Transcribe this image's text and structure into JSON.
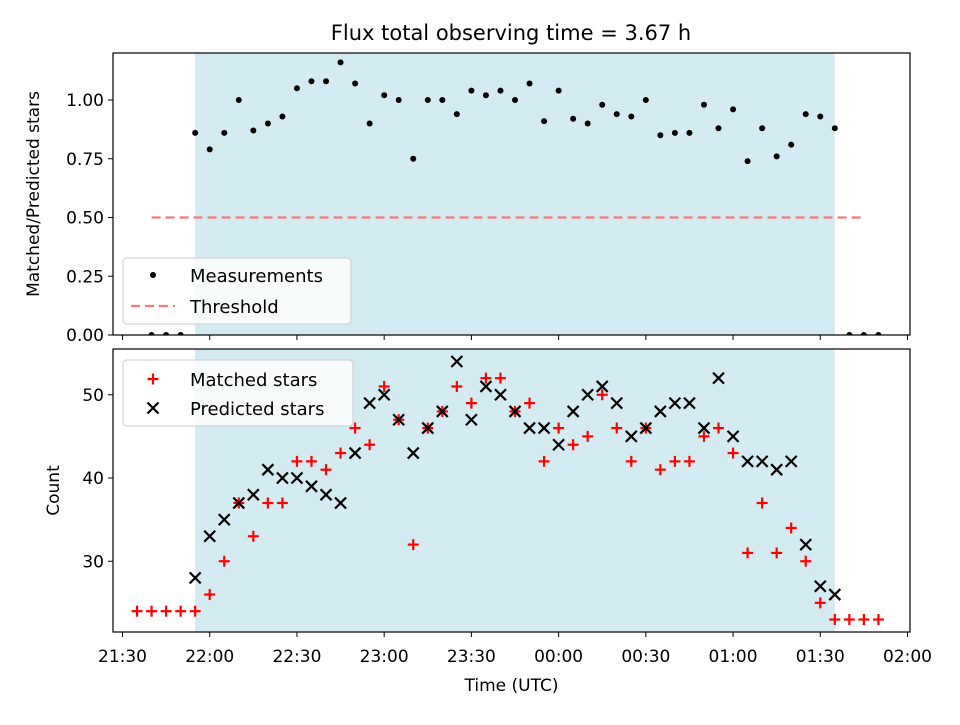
{
  "chart_data": [
    {
      "type": "scatter",
      "title": "Flux total observing time = 3.67 h",
      "ylabel": "Matched/Predicted stars",
      "ylim": [
        0,
        1.2
      ],
      "y_ticks": [
        "0.00",
        "0.25",
        "0.50",
        "0.75",
        "1.00"
      ],
      "observing_window": {
        "start": "21:55",
        "end": "01:35",
        "color": "#d4ebf1"
      },
      "threshold": {
        "value": 0.5,
        "from": "21:40",
        "to": "01:45",
        "color": "#f47a7a"
      },
      "legend": {
        "placement": "lower left",
        "entries": [
          "Measurements",
          "Threshold"
        ]
      },
      "series": [
        {
          "name": "Measurements",
          "color": "#000000",
          "marker": "dot",
          "points": [
            [
              "21:40",
              0.0
            ],
            [
              "21:45",
              0.0
            ],
            [
              "21:50",
              0.0
            ],
            [
              "21:55",
              0.86
            ],
            [
              "22:00",
              0.79
            ],
            [
              "22:05",
              0.86
            ],
            [
              "22:10",
              1.0
            ],
            [
              "22:15",
              0.87
            ],
            [
              "22:20",
              0.9
            ],
            [
              "22:25",
              0.93
            ],
            [
              "22:30",
              1.05
            ],
            [
              "22:35",
              1.08
            ],
            [
              "22:40",
              1.08
            ],
            [
              "22:45",
              1.16
            ],
            [
              "22:50",
              1.07
            ],
            [
              "22:55",
              0.9
            ],
            [
              "23:00",
              1.02
            ],
            [
              "23:05",
              1.0
            ],
            [
              "23:10",
              0.75
            ],
            [
              "23:15",
              1.0
            ],
            [
              "23:20",
              1.0
            ],
            [
              "23:25",
              0.94
            ],
            [
              "23:30",
              1.04
            ],
            [
              "23:35",
              1.02
            ],
            [
              "23:40",
              1.04
            ],
            [
              "23:45",
              1.0
            ],
            [
              "23:50",
              1.07
            ],
            [
              "23:55",
              0.91
            ],
            [
              "00:00",
              1.04
            ],
            [
              "00:05",
              0.92
            ],
            [
              "00:10",
              0.9
            ],
            [
              "00:15",
              0.98
            ],
            [
              "00:20",
              0.94
            ],
            [
              "00:25",
              0.93
            ],
            [
              "00:30",
              1.0
            ],
            [
              "00:35",
              0.85
            ],
            [
              "00:40",
              0.86
            ],
            [
              "00:45",
              0.86
            ],
            [
              "00:50",
              0.98
            ],
            [
              "00:55",
              0.88
            ],
            [
              "01:00",
              0.96
            ],
            [
              "01:05",
              0.74
            ],
            [
              "01:10",
              0.88
            ],
            [
              "01:15",
              0.76
            ],
            [
              "01:20",
              0.81
            ],
            [
              "01:25",
              0.94
            ],
            [
              "01:30",
              0.93
            ],
            [
              "01:35",
              0.88
            ],
            [
              "01:40",
              0.0
            ],
            [
              "01:45",
              0.0
            ],
            [
              "01:50",
              0.0
            ]
          ]
        }
      ]
    },
    {
      "type": "scatter",
      "ylabel": "Count",
      "xlabel": "Time (UTC)",
      "ylim": [
        21.5,
        55.5
      ],
      "y_ticks": [
        30,
        40,
        50
      ],
      "x_ticks": [
        "21:30",
        "22:00",
        "22:30",
        "23:00",
        "23:30",
        "00:00",
        "00:30",
        "01:00",
        "01:30",
        "02:00"
      ],
      "observing_window": {
        "start": "21:55",
        "end": "01:35",
        "color": "#d4ebf1"
      },
      "legend": {
        "placement": "upper left",
        "entries": [
          "Matched stars",
          "Predicted stars"
        ]
      },
      "series": [
        {
          "name": "Matched stars",
          "color": "#ff0000",
          "marker": "plus",
          "points": [
            [
              "21:35",
              24
            ],
            [
              "21:40",
              24
            ],
            [
              "21:45",
              24
            ],
            [
              "21:50",
              24
            ],
            [
              "21:55",
              24
            ],
            [
              "22:00",
              26
            ],
            [
              "22:05",
              30
            ],
            [
              "22:10",
              37
            ],
            [
              "22:15",
              33
            ],
            [
              "22:20",
              37
            ],
            [
              "22:25",
              37
            ],
            [
              "22:30",
              42
            ],
            [
              "22:35",
              42
            ],
            [
              "22:40",
              41
            ],
            [
              "22:45",
              43
            ],
            [
              "22:50",
              46
            ],
            [
              "22:55",
              44
            ],
            [
              "23:00",
              51
            ],
            [
              "23:05",
              47
            ],
            [
              "23:10",
              32
            ],
            [
              "23:15",
              46
            ],
            [
              "23:20",
              48
            ],
            [
              "23:25",
              51
            ],
            [
              "23:30",
              49
            ],
            [
              "23:35",
              52
            ],
            [
              "23:40",
              52
            ],
            [
              "23:45",
              48
            ],
            [
              "23:50",
              49
            ],
            [
              "23:55",
              42
            ],
            [
              "00:00",
              46
            ],
            [
              "00:05",
              44
            ],
            [
              "00:10",
              45
            ],
            [
              "00:15",
              50
            ],
            [
              "00:20",
              46
            ],
            [
              "00:25",
              42
            ],
            [
              "00:30",
              46
            ],
            [
              "00:35",
              41
            ],
            [
              "00:40",
              42
            ],
            [
              "00:45",
              42
            ],
            [
              "00:50",
              45
            ],
            [
              "00:55",
              46
            ],
            [
              "01:00",
              43
            ],
            [
              "01:05",
              31
            ],
            [
              "01:10",
              37
            ],
            [
              "01:15",
              31
            ],
            [
              "01:20",
              34
            ],
            [
              "01:25",
              30
            ],
            [
              "01:30",
              25
            ],
            [
              "01:35",
              23
            ],
            [
              "01:40",
              23
            ],
            [
              "01:45",
              23
            ],
            [
              "01:50",
              23
            ]
          ]
        },
        {
          "name": "Predicted stars",
          "color": "#000000",
          "marker": "x",
          "points": [
            [
              "21:55",
              28
            ],
            [
              "22:00",
              33
            ],
            [
              "22:05",
              35
            ],
            [
              "22:10",
              37
            ],
            [
              "22:15",
              38
            ],
            [
              "22:20",
              41
            ],
            [
              "22:25",
              40
            ],
            [
              "22:30",
              40
            ],
            [
              "22:35",
              39
            ],
            [
              "22:40",
              38
            ],
            [
              "22:45",
              37
            ],
            [
              "22:50",
              43
            ],
            [
              "22:55",
              49
            ],
            [
              "23:00",
              50
            ],
            [
              "23:05",
              47
            ],
            [
              "23:10",
              43
            ],
            [
              "23:15",
              46
            ],
            [
              "23:20",
              48
            ],
            [
              "23:25",
              54
            ],
            [
              "23:30",
              47
            ],
            [
              "23:35",
              51
            ],
            [
              "23:40",
              50
            ],
            [
              "23:45",
              48
            ],
            [
              "23:50",
              46
            ],
            [
              "23:55",
              46
            ],
            [
              "00:00",
              44
            ],
            [
              "00:05",
              48
            ],
            [
              "00:10",
              50
            ],
            [
              "00:15",
              51
            ],
            [
              "00:20",
              49
            ],
            [
              "00:25",
              45
            ],
            [
              "00:30",
              46
            ],
            [
              "00:35",
              48
            ],
            [
              "00:40",
              49
            ],
            [
              "00:45",
              49
            ],
            [
              "00:50",
              46
            ],
            [
              "00:55",
              52
            ],
            [
              "01:00",
              45
            ],
            [
              "01:05",
              42
            ],
            [
              "01:10",
              42
            ],
            [
              "01:15",
              41
            ],
            [
              "01:20",
              42
            ],
            [
              "01:25",
              32
            ],
            [
              "01:30",
              27
            ],
            [
              "01:35",
              26
            ]
          ]
        }
      ]
    }
  ]
}
